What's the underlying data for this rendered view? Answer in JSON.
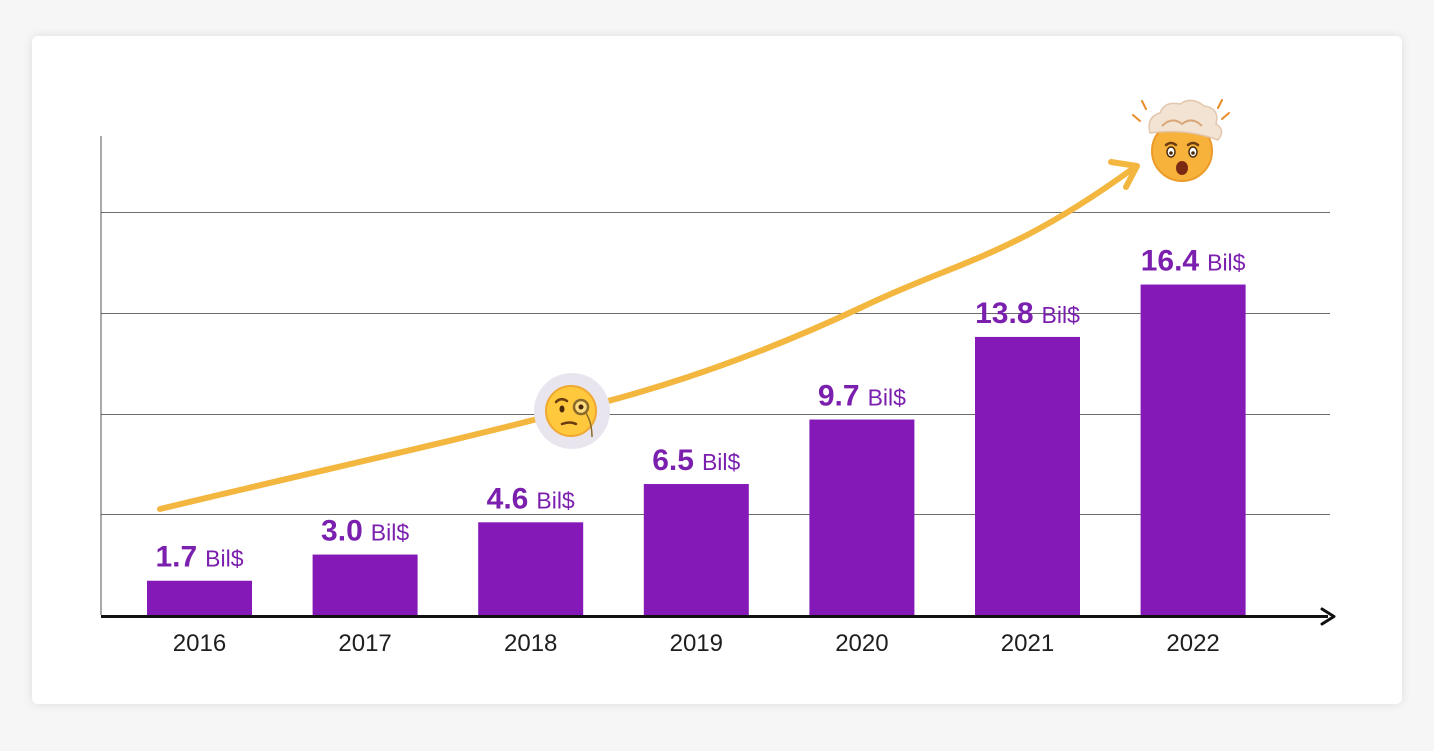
{
  "chart_data": {
    "type": "bar",
    "title": "",
    "xlabel": "",
    "ylabel": "",
    "categories": [
      "2016",
      "2017",
      "2018",
      "2019",
      "2020",
      "2021",
      "2022"
    ],
    "values": [
      1.7,
      3.0,
      4.6,
      6.5,
      9.7,
      13.8,
      16.4
    ],
    "value_labels": [
      "1.7",
      "3.0",
      "4.6",
      "6.5",
      "9.7",
      "13.8",
      "16.4"
    ],
    "unit_label": "Bil$",
    "ylim": [
      0,
      20
    ],
    "grid": true,
    "legend": "none",
    "bar_color": "#8419b8",
    "label_color": "#7b1fae",
    "trend_color": "#f3b63f",
    "trend_arrow": true,
    "annotations": [
      {
        "type": "emoji",
        "icon": "face-with-monocle",
        "near": "2018"
      },
      {
        "type": "emoji",
        "icon": "exploding-head",
        "near": "arrow-head"
      }
    ]
  }
}
